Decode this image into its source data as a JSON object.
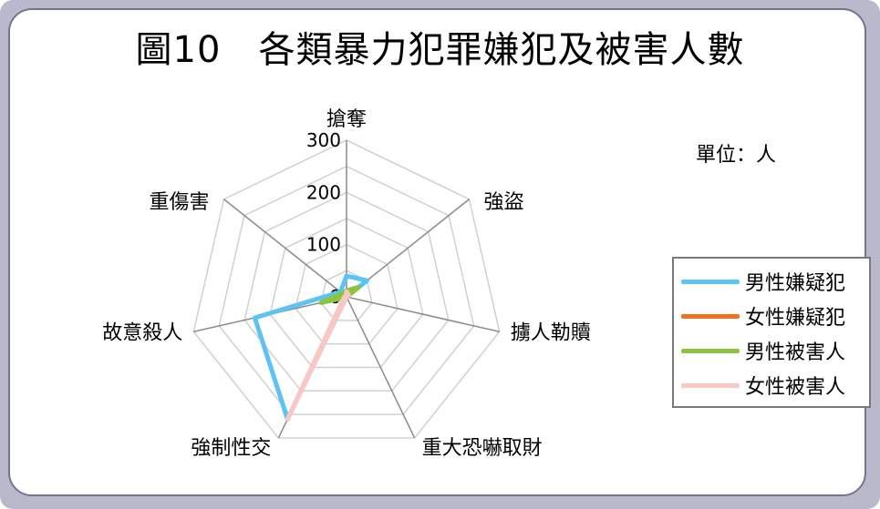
{
  "title": "圖10　各類暴力犯罪嫌犯及被害人數",
  "unit_label": "單位：人",
  "chart_data": {
    "type": "radar",
    "categories": [
      "搶奪",
      "強盜",
      "擄人勒贖",
      "重大恐嚇取財",
      "強制性交",
      "故意殺人",
      "重傷害"
    ],
    "axis_ticks": [
      0,
      100,
      200,
      300
    ],
    "rmax": 300,
    "grid": true,
    "legend_position": "right",
    "series": [
      {
        "name": "男性嫌疑犯",
        "color": "#5bc4f5",
        "values": [
          40,
          50,
          0,
          0,
          260,
          180,
          15
        ]
      },
      {
        "name": "女性嫌疑犯",
        "color": "#f36f21",
        "values": [
          2,
          3,
          0,
          0,
          1,
          15,
          2
        ]
      },
      {
        "name": "男性被害人",
        "color": "#8cc43f",
        "values": [
          12,
          30,
          0,
          0,
          1,
          50,
          10
        ]
      },
      {
        "name": "女性被害人",
        "color": "#f9c7c4",
        "values": [
          10,
          5,
          0,
          0,
          260,
          5,
          2
        ]
      }
    ]
  }
}
